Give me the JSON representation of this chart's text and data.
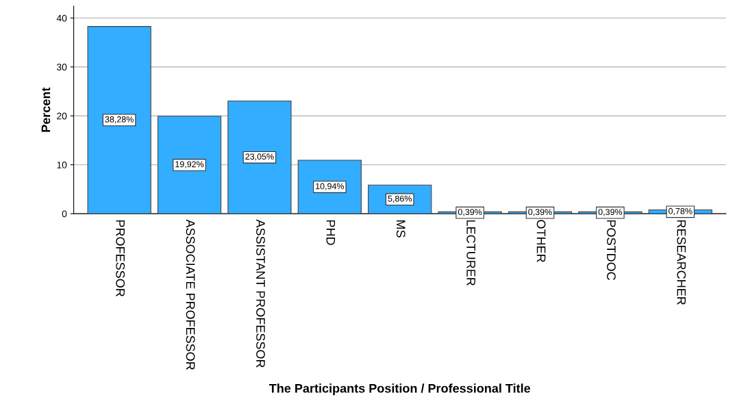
{
  "chart_data": {
    "type": "bar",
    "xlabel": "The Participants Position / Professional Title",
    "ylabel": "Percent",
    "categories": [
      "PROFESSOR",
      "ASSOCIATE PROFESSOR",
      "ASSISTANT PROFESSOR",
      "PHD",
      "MS",
      "LECTURER",
      "OTHER",
      "POSTDOC",
      "RESEARCHER"
    ],
    "values": [
      38.28,
      19.92,
      23.05,
      10.94,
      5.86,
      0.39,
      0.39,
      0.39,
      0.78
    ],
    "value_labels": [
      "38,28%",
      "19,92%",
      "23,05%",
      "10,94%",
      "5,86%",
      "0,39%",
      "0,39%",
      "0,39%",
      "0,78%"
    ],
    "color": "#33adff",
    "ylim": [
      0,
      42.4
    ],
    "yticks": [
      0,
      10,
      20,
      30,
      40
    ],
    "grid": "y",
    "legend": false
  }
}
